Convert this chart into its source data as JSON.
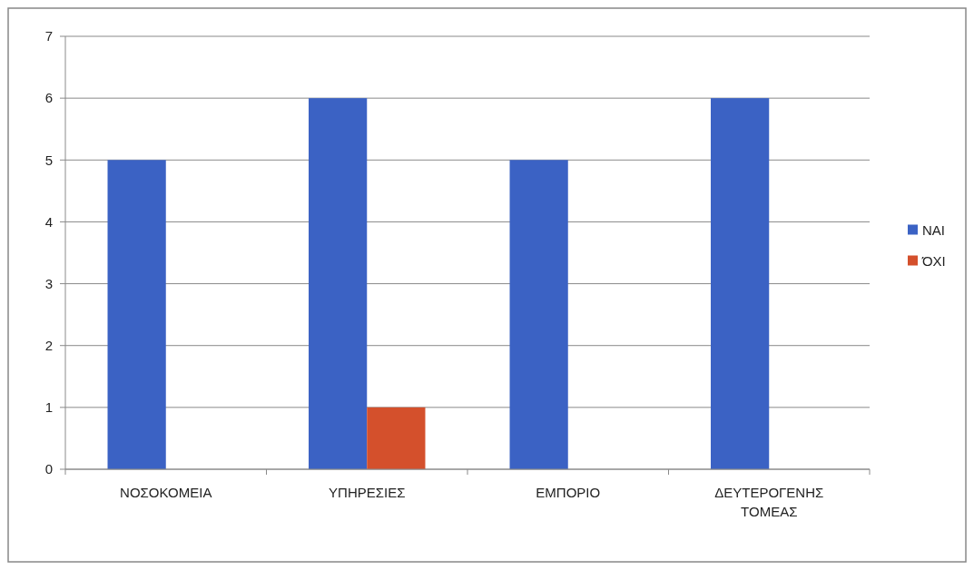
{
  "chart_data": {
    "type": "bar",
    "categories": [
      "ΝΟΣΟΚΟΜΕΙΑ",
      "ΥΠΗΡΕΣΙΕΣ",
      "ΕΜΠΟΡΙΟ",
      "ΔΕΥΤΕΡΟΓΕΝΗΣ ΤΟΜΕΑΣ"
    ],
    "series": [
      {
        "name": "ΝΑΙ",
        "color": "#3b62c4",
        "values": [
          5,
          6,
          5,
          6
        ]
      },
      {
        "name": "ΌΧΙ",
        "color": "#d4502c",
        "values": [
          0,
          1,
          0,
          0
        ]
      }
    ],
    "ylim": [
      0,
      7
    ],
    "yticks": [
      0,
      1,
      2,
      3,
      4,
      5,
      6,
      7
    ],
    "grid": "y",
    "legend": "right"
  }
}
